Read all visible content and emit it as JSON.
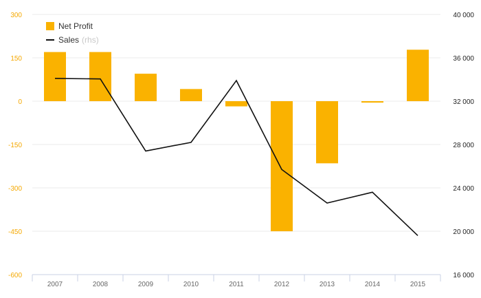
{
  "chart_data": {
    "type": "bar+line",
    "categories": [
      "2007",
      "2008",
      "2009",
      "2010",
      "2011",
      "2012",
      "2013",
      "2014",
      "2015"
    ],
    "series": [
      {
        "name": "Net Profit",
        "type": "bar",
        "axis": "left",
        "values": [
          170,
          170,
          95,
          42,
          -18,
          -450,
          -215,
          -5,
          178
        ]
      },
      {
        "name": "Sales",
        "name_suffix": "(rhs)",
        "type": "line",
        "axis": "right",
        "values": [
          34100,
          34050,
          27400,
          28200,
          33900,
          25700,
          22600,
          23600,
          19600
        ]
      }
    ],
    "y_left": {
      "ticks": [
        300,
        150,
        0,
        -150,
        -300,
        -450,
        -600
      ],
      "tick_labels": [
        "300",
        "150",
        "0",
        "-150",
        "-300",
        "-450",
        "-600"
      ],
      "range": [
        -600,
        300
      ]
    },
    "y_right": {
      "ticks": [
        40000,
        36000,
        32000,
        28000,
        24000,
        20000,
        16000
      ],
      "tick_labels": [
        "40 000",
        "36 000",
        "32 000",
        "28 000",
        "24 000",
        "20 000",
        "16 000"
      ],
      "range": [
        16000,
        40000
      ]
    },
    "title": "",
    "xlabel": "",
    "ylabel": "",
    "grid": true,
    "legend_position": "top-left"
  },
  "colors": {
    "bar": "#fab200",
    "line": "#111111",
    "left_tick_text": "#f5a800",
    "right_tick_text": "#222222",
    "x_tick_text": "#666666",
    "grid": "#ebebeb",
    "axis": "#c8d2e6"
  }
}
